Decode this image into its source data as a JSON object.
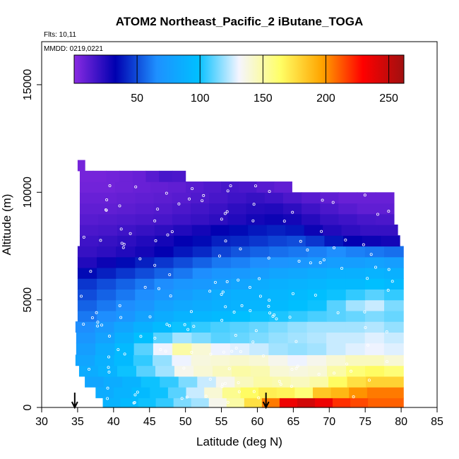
{
  "chart_data": {
    "type": "heatmap",
    "title": "ATOM2 Northeast_Pacific_2 iButane_TOGA",
    "flights_note": "Flts: 10,11",
    "date_note": "MMDD: 0219,0221",
    "xlabel": "Latitude (deg N)",
    "ylabel": "Altitude (m)",
    "xlim": [
      30,
      85
    ],
    "ylim": [
      0,
      17000
    ],
    "x_ticks": [
      "30",
      "35",
      "40",
      "45",
      "50",
      "55",
      "60",
      "65",
      "70",
      "75",
      "80",
      "85"
    ],
    "y_ticks": [
      "0",
      "5000",
      "10000",
      "15000"
    ],
    "colorbar": {
      "range": [
        0,
        262
      ],
      "ticks": [
        "50",
        "100",
        "150",
        "200",
        "250"
      ],
      "colors": [
        "#8a2be2",
        "#0000b0",
        "#1e90ff",
        "#00bfff",
        "#f5f5ff",
        "#ffff66",
        "#ffa500",
        "#ff0000",
        "#a01010"
      ]
    },
    "arrows_latitude": [
      34.6,
      61.2
    ],
    "rows": [
      {
        "alt": [
          0,
          450
        ],
        "lat": [
          38.5,
          80.3
        ],
        "v": [
          90,
          95,
          100,
          105,
          115,
          120,
          135,
          150,
          175,
          205,
          235,
          245,
          235,
          220,
          215,
          210,
          210
        ]
      },
      {
        "alt": [
          450,
          950
        ],
        "lat": [
          37.5,
          80.3
        ],
        "v": [
          85,
          90,
          95,
          100,
          110,
          125,
          140,
          155,
          165,
          170,
          168,
          160,
          185,
          190,
          200,
          205,
          205
        ]
      },
      {
        "alt": [
          950,
          1450
        ],
        "lat": [
          36.0,
          80.3
        ],
        "v": [
          80,
          85,
          90,
          100,
          105,
          115,
          125,
          135,
          145,
          150,
          148,
          145,
          150,
          165,
          175,
          180,
          180
        ]
      },
      {
        "alt": [
          1450,
          1950
        ],
        "lat": [
          35.2,
          80.3
        ],
        "v": [
          85,
          90,
          100,
          110,
          120,
          135,
          140,
          145,
          150,
          148,
          140,
          138,
          140,
          150,
          160,
          165,
          160
        ]
      },
      {
        "alt": [
          1950,
          2450
        ],
        "lat": [
          34.7,
          80.3
        ],
        "v": [
          80,
          88,
          95,
          105,
          118,
          130,
          138,
          140,
          142,
          140,
          135,
          130,
          135,
          140,
          145,
          145,
          140
        ]
      },
      {
        "alt": [
          2450,
          3000
        ],
        "lat": [
          34.8,
          80.3
        ],
        "v": [
          75,
          85,
          95,
          110,
          130,
          150,
          140,
          130,
          128,
          125,
          120,
          118,
          120,
          125,
          128,
          130,
          128
        ]
      },
      {
        "alt": [
          3000,
          3500
        ],
        "lat": [
          34.8,
          80.3
        ],
        "v": [
          70,
          78,
          88,
          98,
          110,
          120,
          115,
          110,
          112,
          115,
          118,
          120,
          122,
          125,
          125,
          128,
          125
        ]
      },
      {
        "alt": [
          3500,
          4000
        ],
        "lat": [
          34.7,
          80.3
        ],
        "v": [
          65,
          72,
          80,
          88,
          95,
          100,
          105,
          108,
          110,
          112,
          115,
          118,
          120,
          120,
          120,
          122,
          118
        ]
      },
      {
        "alt": [
          4000,
          4500
        ],
        "lat": [
          35.0,
          80.3
        ],
        "v": [
          60,
          65,
          70,
          78,
          85,
          90,
          92,
          95,
          98,
          100,
          102,
          105,
          108,
          110,
          112,
          115,
          112
        ]
      },
      {
        "alt": [
          4500,
          5000
        ],
        "lat": [
          35.0,
          80.3
        ],
        "v": [
          55,
          60,
          65,
          70,
          78,
          82,
          85,
          88,
          90,
          92,
          95,
          98,
          100,
          110,
          120,
          125,
          115
        ]
      },
      {
        "alt": [
          5000,
          5500
        ],
        "lat": [
          35.0,
          80.3
        ],
        "v": [
          50,
          55,
          60,
          65,
          70,
          75,
          80,
          85,
          88,
          90,
          92,
          95,
          98,
          100,
          105,
          110,
          105
        ]
      },
      {
        "alt": [
          5500,
          6000
        ],
        "lat": [
          35.0,
          80.3
        ],
        "v": [
          45,
          50,
          55,
          60,
          65,
          70,
          72,
          75,
          80,
          85,
          88,
          90,
          92,
          95,
          95,
          98,
          95
        ]
      },
      {
        "alt": [
          6000,
          6500
        ],
        "lat": [
          35.0,
          80.3
        ],
        "v": [
          35,
          40,
          45,
          50,
          55,
          60,
          65,
          70,
          72,
          75,
          80,
          82,
          85,
          88,
          88,
          90,
          88
        ]
      },
      {
        "alt": [
          6500,
          7000
        ],
        "lat": [
          35.0,
          80.3
        ],
        "v": [
          25,
          30,
          35,
          40,
          45,
          50,
          55,
          60,
          62,
          65,
          68,
          70,
          72,
          75,
          75,
          78,
          75
        ]
      },
      {
        "alt": [
          7000,
          7500
        ],
        "lat": [
          35.0,
          80.3
        ],
        "v": [
          20,
          22,
          25,
          28,
          32,
          38,
          42,
          48,
          52,
          55,
          58,
          60,
          62,
          65,
          62,
          60,
          58
        ]
      },
      {
        "alt": [
          7500,
          8000
        ],
        "lat": [
          35.3,
          79.8
        ],
        "v": [
          18,
          20,
          22,
          25,
          28,
          32,
          35,
          40,
          42,
          45,
          48,
          50,
          45,
          38,
          32,
          30,
          28
        ]
      },
      {
        "alt": [
          8000,
          8500
        ],
        "lat": [
          35.3,
          79.5
        ],
        "v": [
          15,
          16,
          18,
          20,
          22,
          25,
          28,
          32,
          35,
          38,
          40,
          38,
          30,
          25,
          22,
          20,
          20
        ]
      },
      {
        "alt": [
          8500,
          9000
        ],
        "lat": [
          35.3,
          79.0
        ],
        "v": [
          12,
          13,
          14,
          15,
          16,
          18,
          20,
          22,
          25,
          28,
          30,
          28,
          24,
          20,
          18,
          16,
          15
        ]
      },
      {
        "alt": [
          9000,
          9500
        ],
        "lat": [
          35.3,
          79.0
        ],
        "v": [
          10,
          10,
          11,
          12,
          13,
          15,
          17,
          19,
          22,
          24,
          25,
          22,
          18,
          15,
          12,
          10,
          10
        ]
      },
      {
        "alt": [
          9500,
          10000
        ],
        "lat": [
          35.3,
          79.0
        ],
        "v": [
          8,
          8,
          9,
          10,
          11,
          12,
          14,
          16,
          18,
          20,
          18,
          15,
          12,
          10,
          8,
          8,
          8
        ]
      },
      {
        "alt": [
          10000,
          10500
        ],
        "lat": [
          35.3,
          64.8
        ],
        "v": [
          6,
          6,
          7,
          8,
          9,
          10,
          12,
          14,
          16,
          15,
          12,
          10
        ]
      },
      {
        "alt": [
          10500,
          11000
        ],
        "lat": [
          35.3,
          50.0
        ],
        "v": [
          5,
          5,
          6,
          7,
          8,
          12,
          16,
          15
        ]
      },
      {
        "alt": [
          11000,
          11500
        ],
        "lat": [
          35.0,
          36.0
        ],
        "v": [
          5
        ]
      }
    ]
  }
}
